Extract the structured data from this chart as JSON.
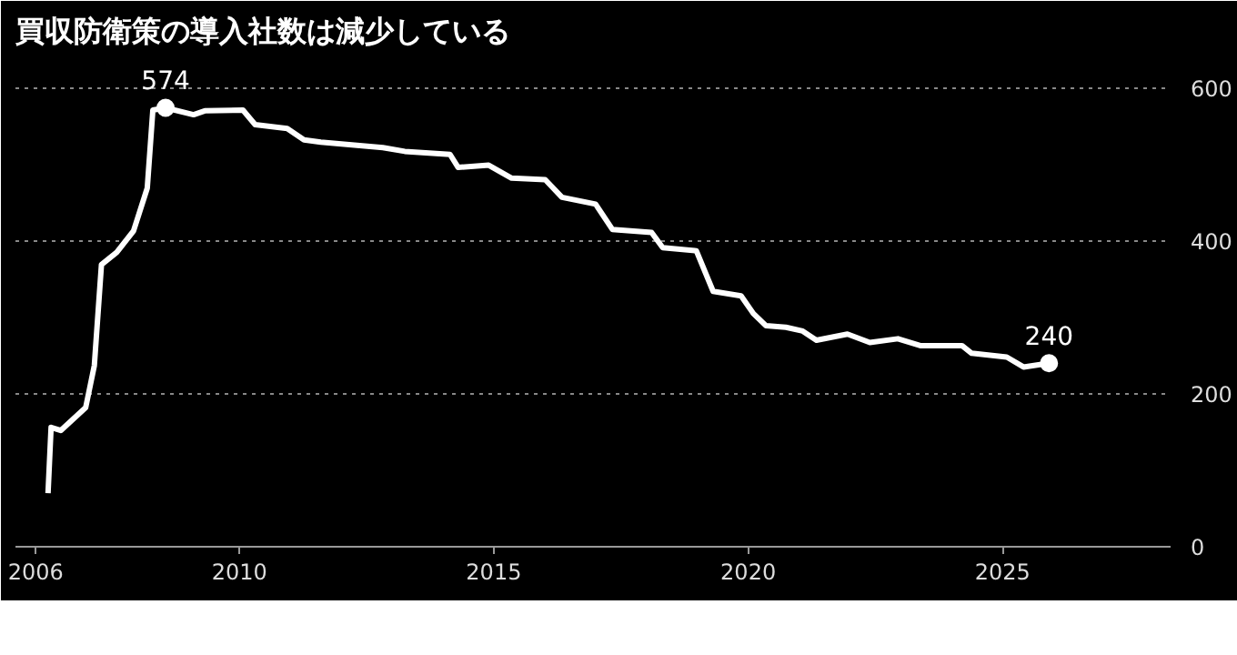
{
  "chart_data": {
    "type": "line",
    "title": "買収防衛策の導入社数は減少している",
    "x": [
      2006.24,
      2006.3,
      2006.49,
      2006.98,
      2007.15,
      2007.29,
      2007.59,
      2007.92,
      2008.19,
      2008.3,
      2008.55,
      2009.1,
      2009.32,
      2010.07,
      2010.31,
      2010.94,
      2011.27,
      2011.6,
      2012.82,
      2013.25,
      2014.14,
      2014.3,
      2014.9,
      2015.35,
      2016.01,
      2016.34,
      2017.0,
      2017.33,
      2018.1,
      2018.32,
      2018.98,
      2019.31,
      2019.86,
      2020.1,
      2020.35,
      2020.74,
      2021.07,
      2021.34,
      2021.95,
      2022.39,
      2022.94,
      2023.38,
      2024.2,
      2024.39,
      2025.08,
      2025.41,
      2025.91
    ],
    "series": [
      {
        "color": "#ffffff",
        "values": [
          70,
          156,
          152,
          182,
          237,
          369,
          385,
          413,
          469,
          571,
          574,
          565,
          570,
          571,
          552,
          547,
          532,
          529,
          522,
          517,
          513,
          496,
          499,
          482,
          480,
          457,
          448,
          415,
          411,
          391,
          387,
          334,
          328,
          305,
          289,
          287,
          282,
          270,
          278,
          267,
          272,
          263,
          263,
          253,
          248,
          235,
          240
        ]
      }
    ],
    "xlim": [
      2005.6,
      2028.3
    ],
    "xticks": [
      2006,
      2010,
      2015,
      2020,
      2025
    ],
    "ylim": [
      0,
      640
    ],
    "yticks": [
      0,
      200,
      400,
      600
    ],
    "grid": "y",
    "line_style": "solid",
    "annotations": [
      {
        "text": "574",
        "x": 2008.55,
        "y": 574
      },
      {
        "text": "240",
        "x": 2025.91,
        "y": 240
      }
    ]
  }
}
